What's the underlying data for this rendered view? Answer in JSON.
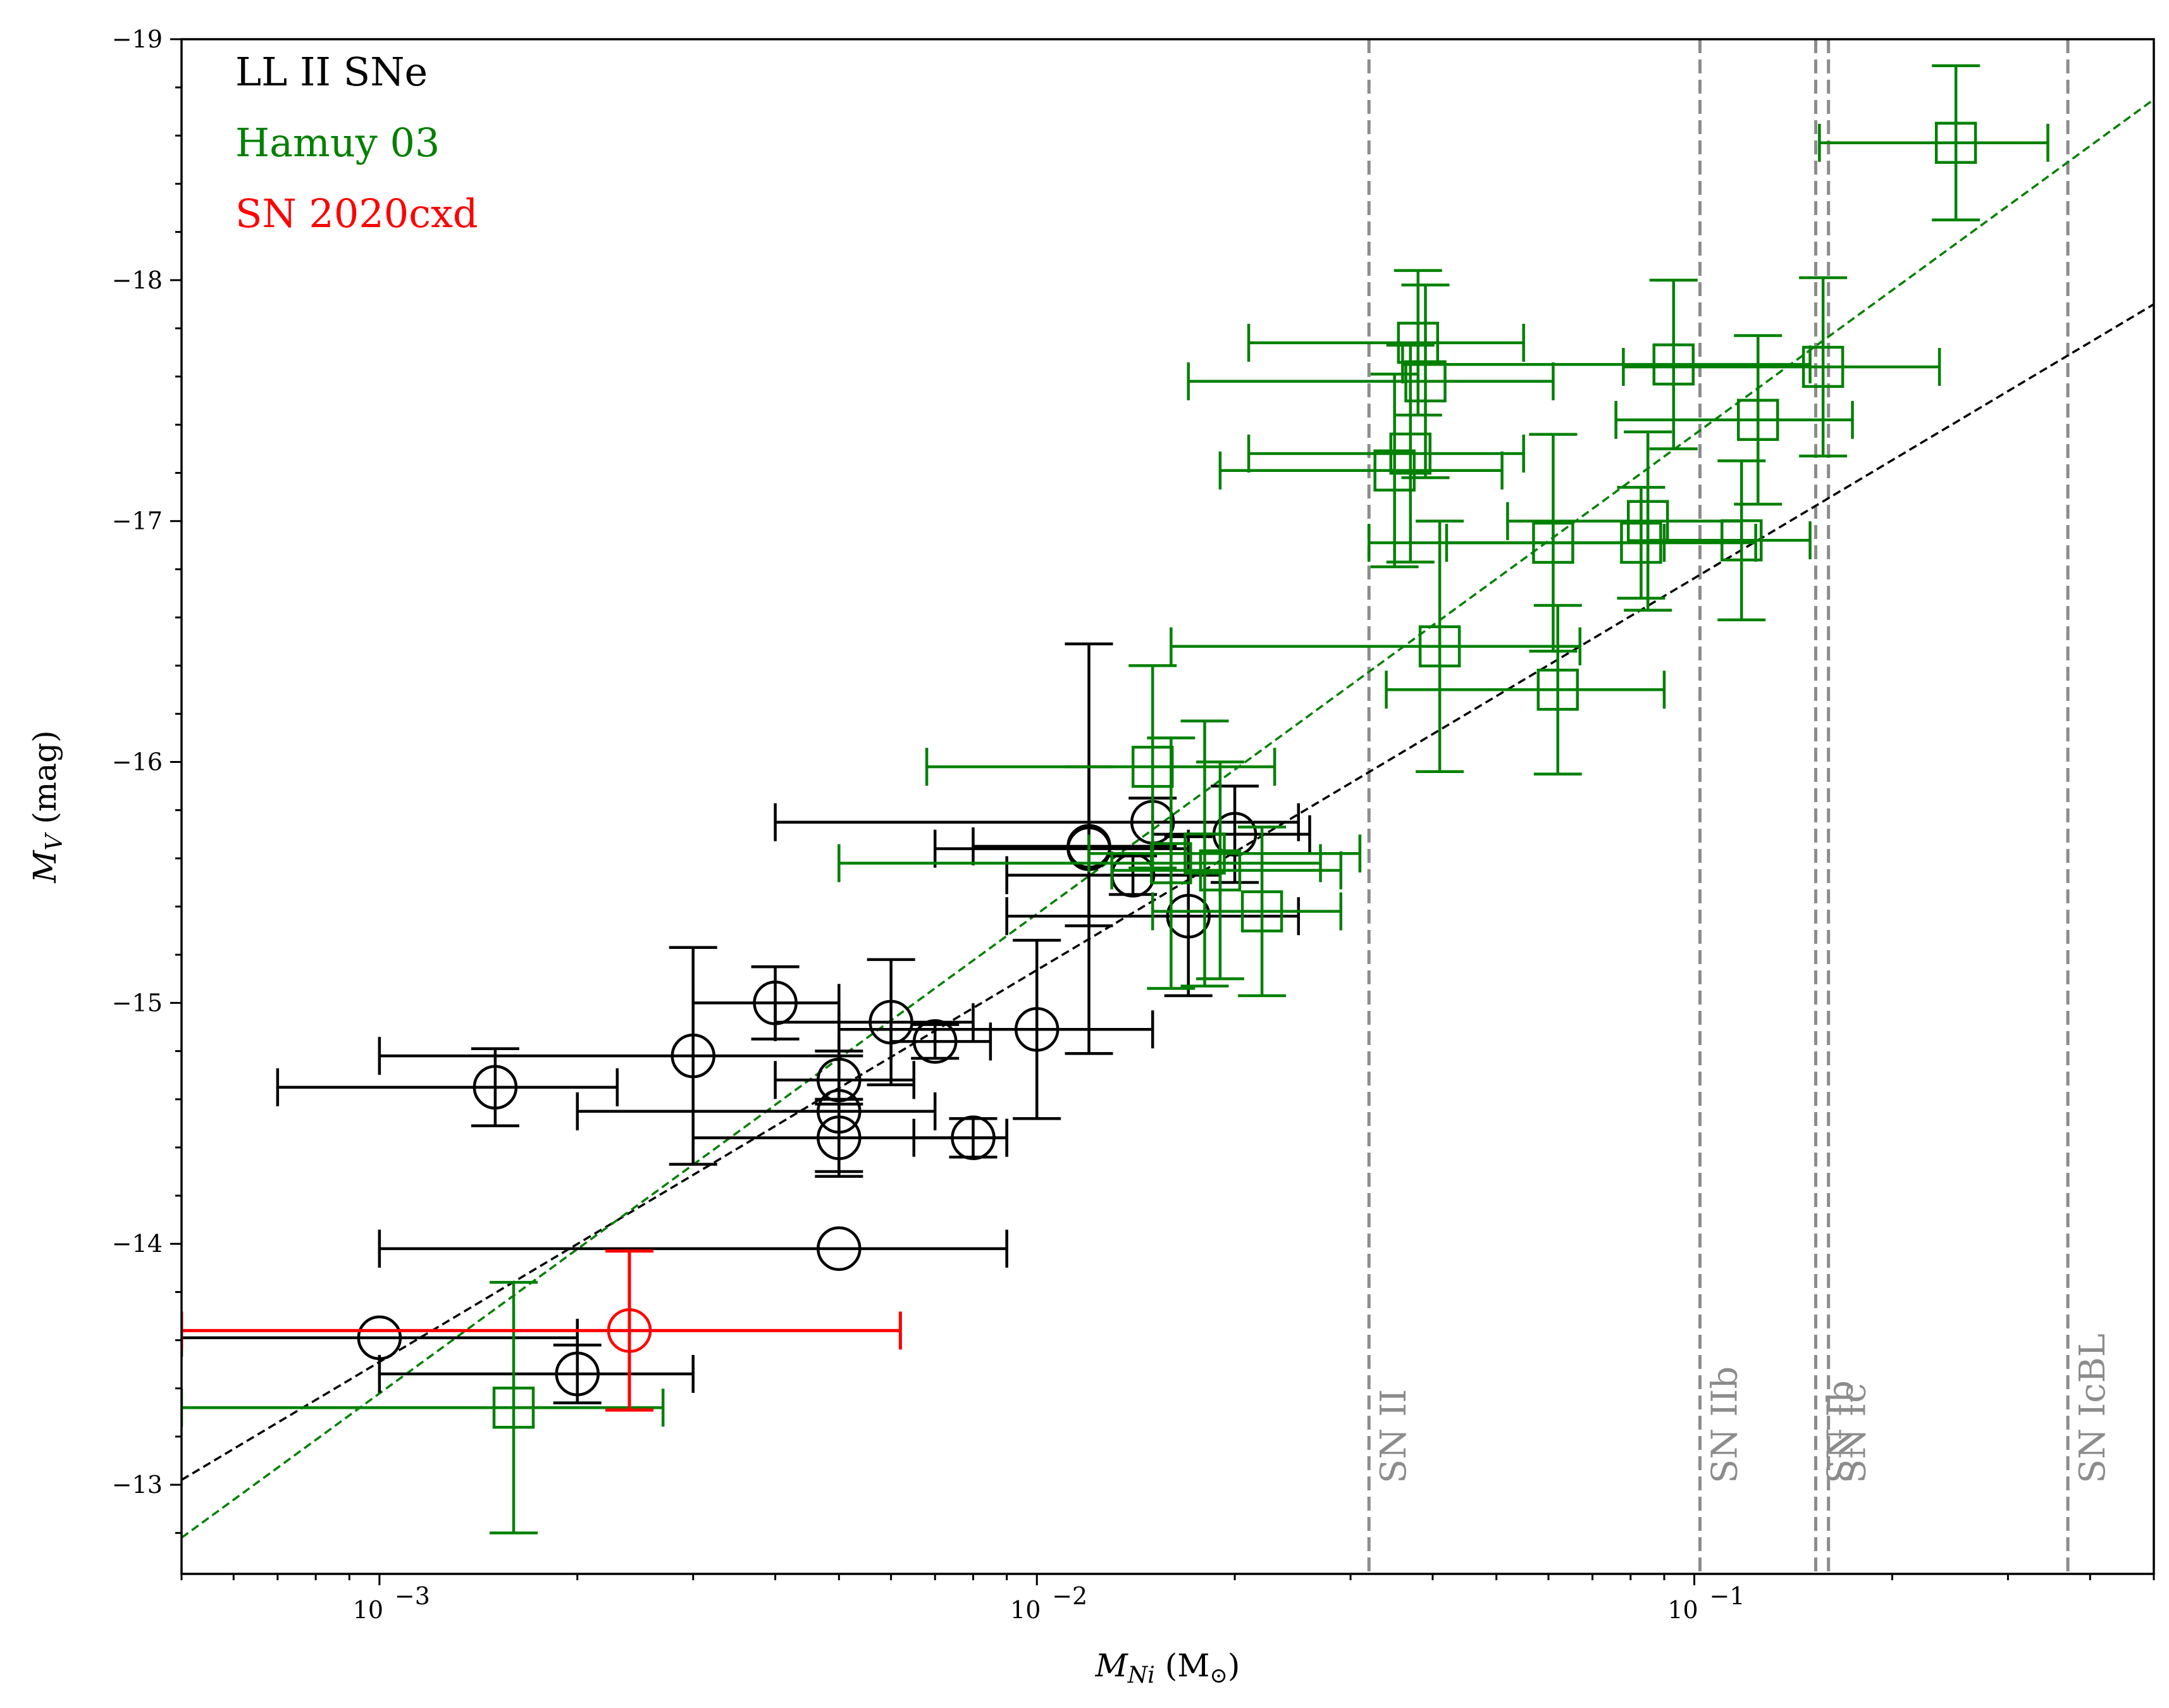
{
  "chart_data": {
    "type": "scatter",
    "title": "",
    "xlabel": "M_Ni (M_☉)",
    "xlabel_parts": {
      "main": "M",
      "sub": "Ni",
      "unit_open": " (M",
      "unit_sub": "⊙",
      "unit_close": ")"
    },
    "ylabel_parts": {
      "main": "M",
      "sub": "V",
      "unit": " (mag)"
    },
    "xscale": "log",
    "xlim": [
      0.0005,
      0.5
    ],
    "ylim": [
      -12.63,
      -19.0
    ],
    "x_ticks": [
      {
        "value": 0.001,
        "base": "10",
        "exp": "−3"
      },
      {
        "value": 0.01,
        "base": "10",
        "exp": "−2"
      },
      {
        "value": 0.1,
        "base": "10",
        "exp": "−1"
      }
    ],
    "y_ticks": [
      {
        "value": -13,
        "label": "−13"
      },
      {
        "value": -14,
        "label": "−14"
      },
      {
        "value": -15,
        "label": "−15"
      },
      {
        "value": -16,
        "label": "−16"
      },
      {
        "value": -17,
        "label": "−17"
      },
      {
        "value": -18,
        "label": "−18"
      },
      {
        "value": -19,
        "label": "−19"
      }
    ],
    "legend": [
      {
        "label": "LL II SNe",
        "color": "#000000"
      },
      {
        "label": "Hamuy 03",
        "color": "#008000"
      },
      {
        "label": "SN 2020cxd",
        "color": "#ff0000"
      }
    ],
    "legend_position": "top-left",
    "vertical_lines": [
      {
        "x": 0.032,
        "label": "SN II"
      },
      {
        "x": 0.102,
        "label": "SN IIb"
      },
      {
        "x": 0.153,
        "label": "SN Ib"
      },
      {
        "x": 0.16,
        "label": "SN Ic"
      },
      {
        "x": 0.37,
        "label": "SN IcBL"
      }
    ],
    "fit_lines": [
      {
        "name": "LL II fit",
        "color": "#000000",
        "x": [
          0.0005,
          0.5
        ],
        "y": [
          -13.02,
          -17.9
        ]
      },
      {
        "name": "Hamuy 03 fit",
        "color": "#008000",
        "x": [
          0.0005,
          0.5
        ],
        "y": [
          -12.78,
          -18.75
        ]
      }
    ],
    "series": [
      {
        "name": "LL II SNe",
        "color": "#000000",
        "marker": "circle",
        "points": [
          {
            "x": 0.001,
            "y": -13.61,
            "xlo": 0.0005,
            "xhi": 0.002,
            "yerr": 0.0
          },
          {
            "x": 0.002,
            "y": -13.46,
            "xlo": 0.001,
            "xhi": 0.003,
            "yerr": 0.12
          },
          {
            "x": 0.005,
            "y": -13.98,
            "xlo": 0.001,
            "xhi": 0.009,
            "yerr": 0.0
          },
          {
            "x": 0.0015,
            "y": -14.65,
            "xlo": 0.0007,
            "xhi": 0.0023,
            "yerr": 0.16
          },
          {
            "x": 0.003,
            "y": -14.78,
            "xlo": 0.001,
            "xhi": 0.005,
            "yerr": 0.45
          },
          {
            "x": 0.004,
            "y": -15.0,
            "xlo": 0.003,
            "xhi": 0.005,
            "yerr": 0.15
          },
          {
            "x": 0.005,
            "y": -14.68,
            "xlo": 0.004,
            "xhi": 0.0065,
            "yerr": 0.1
          },
          {
            "x": 0.005,
            "y": -14.55,
            "xlo": 0.002,
            "xhi": 0.007,
            "yerr": 0.25
          },
          {
            "x": 0.005,
            "y": -14.44,
            "xlo": 0.003,
            "xhi": 0.009,
            "yerr": 0.16
          },
          {
            "x": 0.006,
            "y": -14.92,
            "xlo": 0.004,
            "xhi": 0.008,
            "yerr": 0.26
          },
          {
            "x": 0.007,
            "y": -14.84,
            "xlo": 0.006,
            "xhi": 0.0085,
            "yerr": 0.07
          },
          {
            "x": 0.008,
            "y": -14.44,
            "xlo": 0.0065,
            "xhi": 0.009,
            "yerr": 0.08
          },
          {
            "x": 0.01,
            "y": -14.89,
            "xlo": 0.005,
            "xhi": 0.015,
            "yerr": 0.37
          },
          {
            "x": 0.012,
            "y": -15.64,
            "xlo": 0.007,
            "xhi": 0.017,
            "yerr": 0.85
          },
          {
            "x": 0.012,
            "y": -15.65,
            "xlo": 0.008,
            "xhi": 0.016,
            "yerr": 0.33
          },
          {
            "x": 0.014,
            "y": -15.53,
            "xlo": 0.009,
            "xhi": 0.019,
            "yerr": 0.08
          },
          {
            "x": 0.015,
            "y": -15.75,
            "xlo": 0.004,
            "xhi": 0.025,
            "yerr": 0.1
          },
          {
            "x": 0.017,
            "y": -15.36,
            "xlo": 0.009,
            "xhi": 0.025,
            "yerr": 0.33
          },
          {
            "x": 0.02,
            "y": -15.7,
            "xlo": 0.015,
            "xhi": 0.026,
            "yerr": 0.2
          }
        ]
      },
      {
        "name": "Hamuy 03",
        "color": "#008000",
        "marker": "square",
        "points": [
          {
            "x": 0.0016,
            "y": -13.32,
            "xlo": 0.0005,
            "xhi": 0.0027,
            "yerr": 0.52
          },
          {
            "x": 0.015,
            "y": -15.98,
            "xlo": 0.0068,
            "xhi": 0.023,
            "yerr": 0.42
          },
          {
            "x": 0.016,
            "y": -15.58,
            "xlo": 0.005,
            "xhi": 0.027,
            "yerr": 0.52
          },
          {
            "x": 0.018,
            "y": -15.62,
            "xlo": 0.012,
            "xhi": 0.031,
            "yerr": 0.55
          },
          {
            "x": 0.019,
            "y": -15.55,
            "xlo": 0.013,
            "xhi": 0.029,
            "yerr": 0.45
          },
          {
            "x": 0.022,
            "y": -15.38,
            "xlo": 0.015,
            "xhi": 0.029,
            "yerr": 0.35
          },
          {
            "x": 0.035,
            "y": -17.21,
            "xlo": 0.019,
            "xhi": 0.051,
            "yerr": 0.4
          },
          {
            "x": 0.037,
            "y": -17.28,
            "xlo": 0.021,
            "xhi": 0.055,
            "yerr": 0.45
          },
          {
            "x": 0.038,
            "y": -17.74,
            "xlo": 0.021,
            "xhi": 0.055,
            "yerr": 0.3
          },
          {
            "x": 0.039,
            "y": -17.58,
            "xlo": 0.017,
            "xhi": 0.061,
            "yerr": 0.4
          },
          {
            "x": 0.041,
            "y": -16.48,
            "xlo": 0.016,
            "xhi": 0.067,
            "yerr": 0.52
          },
          {
            "x": 0.062,
            "y": -16.3,
            "xlo": 0.034,
            "xhi": 0.09,
            "yerr": 0.35
          },
          {
            "x": 0.061,
            "y": -16.91,
            "xlo": 0.032,
            "xhi": 0.09,
            "yerr": 0.45
          },
          {
            "x": 0.083,
            "y": -16.91,
            "xlo": 0.042,
            "xhi": 0.124,
            "yerr": 0.23
          },
          {
            "x": 0.085,
            "y": -17.0,
            "xlo": 0.052,
            "xhi": 0.118,
            "yerr": 0.37
          },
          {
            "x": 0.093,
            "y": -17.65,
            "xlo": 0.036,
            "xhi": 0.15,
            "yerr": 0.35
          },
          {
            "x": 0.118,
            "y": -16.92,
            "xlo": 0.085,
            "xhi": 0.15,
            "yerr": 0.33
          },
          {
            "x": 0.125,
            "y": -17.42,
            "xlo": 0.076,
            "xhi": 0.174,
            "yerr": 0.35
          },
          {
            "x": 0.157,
            "y": -17.64,
            "xlo": 0.078,
            "xhi": 0.236,
            "yerr": 0.37
          },
          {
            "x": 0.25,
            "y": -18.57,
            "xlo": 0.155,
            "xhi": 0.345,
            "yerr": 0.32
          }
        ]
      },
      {
        "name": "SN 2020cxd",
        "color": "#ff0000",
        "marker": "circle",
        "points": [
          {
            "x": 0.0024,
            "y": -13.64,
            "xlo": 0.0005,
            "xhi": 0.0062,
            "yerr": 0.33
          }
        ]
      }
    ]
  }
}
